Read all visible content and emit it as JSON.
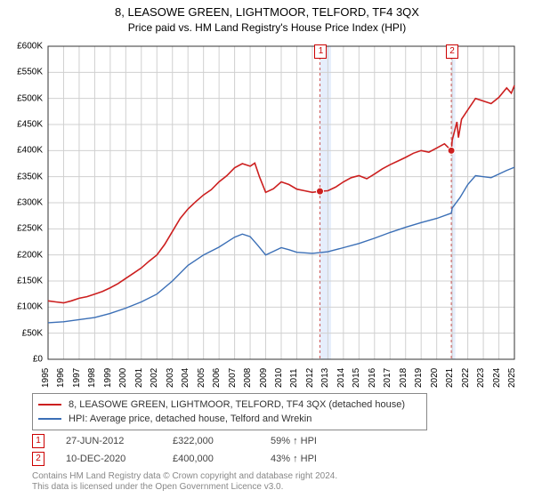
{
  "chart": {
    "title_line1": "8, LEASOWE GREEN, LIGHTMOOR, TELFORD, TF4 3QX",
    "title_line2": "Price paid vs. HM Land Registry's House Price Index (HPI)",
    "type": "line",
    "background_color": "#ffffff",
    "grid_color": "#d0d0d0",
    "shade_color": "#e6eefc",
    "x_axis": {
      "min": 1995,
      "max": 2025,
      "ticks": [
        1995,
        1996,
        1997,
        1998,
        1999,
        2000,
        2001,
        2002,
        2003,
        2004,
        2005,
        2006,
        2007,
        2008,
        2009,
        2010,
        2011,
        2012,
        2013,
        2014,
        2015,
        2016,
        2017,
        2018,
        2019,
        2020,
        2021,
        2022,
        2023,
        2024,
        2025
      ],
      "label_fontsize": 10,
      "label_rotation": -90
    },
    "y_axis": {
      "min": 0,
      "max": 600000,
      "tick_step": 50000,
      "tick_labels": [
        "£0",
        "£50K",
        "£100K",
        "£150K",
        "£200K",
        "£250K",
        "£300K",
        "£350K",
        "£400K",
        "£450K",
        "£500K",
        "£550K",
        "£600K"
      ],
      "label_fontsize": 10
    },
    "shaded_ranges": [
      {
        "x0": 2012.49,
        "x1": 2013.2
      },
      {
        "x0": 2020.94,
        "x1": 2021.2
      }
    ],
    "series": [
      {
        "name": "8, LEASOWE GREEN, LIGHTMOOR, TELFORD, TF4 3QX (detached house)",
        "color": "#cc1f1f",
        "line_width": 1.6,
        "data": [
          [
            1995,
            112000
          ],
          [
            1995.5,
            110000
          ],
          [
            1996,
            108000
          ],
          [
            1996.5,
            112000
          ],
          [
            1997,
            117000
          ],
          [
            1997.5,
            120000
          ],
          [
            1998,
            125000
          ],
          [
            1998.5,
            130000
          ],
          [
            1999,
            137000
          ],
          [
            1999.5,
            145000
          ],
          [
            2000,
            155000
          ],
          [
            2000.5,
            165000
          ],
          [
            2001,
            175000
          ],
          [
            2001.5,
            188000
          ],
          [
            2002,
            200000
          ],
          [
            2002.5,
            220000
          ],
          [
            2003,
            245000
          ],
          [
            2003.5,
            270000
          ],
          [
            2004,
            288000
          ],
          [
            2004.5,
            302000
          ],
          [
            2005,
            315000
          ],
          [
            2005.5,
            325000
          ],
          [
            2006,
            340000
          ],
          [
            2006.5,
            352000
          ],
          [
            2007,
            367000
          ],
          [
            2007.5,
            375000
          ],
          [
            2008,
            370000
          ],
          [
            2008.3,
            376000
          ],
          [
            2008.6,
            350000
          ],
          [
            2009,
            320000
          ],
          [
            2009.5,
            327000
          ],
          [
            2010,
            340000
          ],
          [
            2010.5,
            335000
          ],
          [
            2011,
            326000
          ],
          [
            2011.5,
            323000
          ],
          [
            2012,
            320000
          ],
          [
            2012.49,
            322000
          ],
          [
            2013,
            323000
          ],
          [
            2013.5,
            330000
          ],
          [
            2014,
            340000
          ],
          [
            2014.5,
            348000
          ],
          [
            2015,
            352000
          ],
          [
            2015.5,
            346000
          ],
          [
            2016,
            355000
          ],
          [
            2016.5,
            365000
          ],
          [
            2017,
            373000
          ],
          [
            2017.5,
            380000
          ],
          [
            2018,
            387000
          ],
          [
            2018.5,
            395000
          ],
          [
            2019,
            400000
          ],
          [
            2019.5,
            397000
          ],
          [
            2020,
            405000
          ],
          [
            2020.5,
            413000
          ],
          [
            2020.94,
            400000
          ],
          [
            2021,
            420000
          ],
          [
            2021.3,
            455000
          ],
          [
            2021.4,
            425000
          ],
          [
            2021.6,
            460000
          ],
          [
            2022,
            478000
          ],
          [
            2022.5,
            500000
          ],
          [
            2023,
            495000
          ],
          [
            2023.5,
            490000
          ],
          [
            2024,
            502000
          ],
          [
            2024.5,
            520000
          ],
          [
            2024.8,
            510000
          ],
          [
            2025,
            525000
          ]
        ]
      },
      {
        "name": "HPI: Average price, detached house, Telford and Wrekin",
        "color": "#3b6fb6",
        "line_width": 1.4,
        "data": [
          [
            1995,
            70000
          ],
          [
            1996,
            72000
          ],
          [
            1997,
            76000
          ],
          [
            1998,
            80000
          ],
          [
            1999,
            88000
          ],
          [
            2000,
            98000
          ],
          [
            2001,
            110000
          ],
          [
            2002,
            125000
          ],
          [
            2003,
            150000
          ],
          [
            2004,
            180000
          ],
          [
            2005,
            200000
          ],
          [
            2006,
            215000
          ],
          [
            2007,
            234000
          ],
          [
            2007.5,
            240000
          ],
          [
            2008,
            235000
          ],
          [
            2008.5,
            218000
          ],
          [
            2009,
            200000
          ],
          [
            2009.5,
            207000
          ],
          [
            2010,
            214000
          ],
          [
            2010.5,
            210000
          ],
          [
            2011,
            205000
          ],
          [
            2012,
            203000
          ],
          [
            2013,
            206000
          ],
          [
            2014,
            214000
          ],
          [
            2015,
            222000
          ],
          [
            2016,
            232000
          ],
          [
            2017,
            243000
          ],
          [
            2018,
            253000
          ],
          [
            2019,
            262000
          ],
          [
            2020,
            270000
          ],
          [
            2020.94,
            280000
          ],
          [
            2021,
            290000
          ],
          [
            2021.5,
            310000
          ],
          [
            2022,
            335000
          ],
          [
            2022.5,
            352000
          ],
          [
            2023,
            350000
          ],
          [
            2023.5,
            348000
          ],
          [
            2024,
            355000
          ],
          [
            2024.5,
            362000
          ],
          [
            2025,
            368000
          ]
        ]
      }
    ],
    "sale_markers": [
      {
        "label": "1",
        "x": 2012.49,
        "y": 322000,
        "dot_color": "#cc1f1f"
      },
      {
        "label": "2",
        "x": 2020.94,
        "y": 400000,
        "dot_color": "#cc1f1f"
      }
    ]
  },
  "legend": {
    "border_color": "#888888",
    "fontsize": 11,
    "items": [
      {
        "color": "#cc1f1f",
        "label": "8, LEASOWE GREEN, LIGHTMOOR, TELFORD, TF4 3QX (detached house)"
      },
      {
        "color": "#3b6fb6",
        "label": "HPI: Average price, detached house, Telford and Wrekin"
      }
    ]
  },
  "sales": [
    {
      "marker": "1",
      "date": "27-JUN-2012",
      "price": "£322,000",
      "pct": "59% ↑ HPI"
    },
    {
      "marker": "2",
      "date": "10-DEC-2020",
      "price": "£400,000",
      "pct": "43% ↑ HPI"
    }
  ],
  "footer": {
    "line1": "Contains HM Land Registry data © Crown copyright and database right 2024.",
    "line2": "This data is licensed under the Open Government Licence v3.0."
  }
}
